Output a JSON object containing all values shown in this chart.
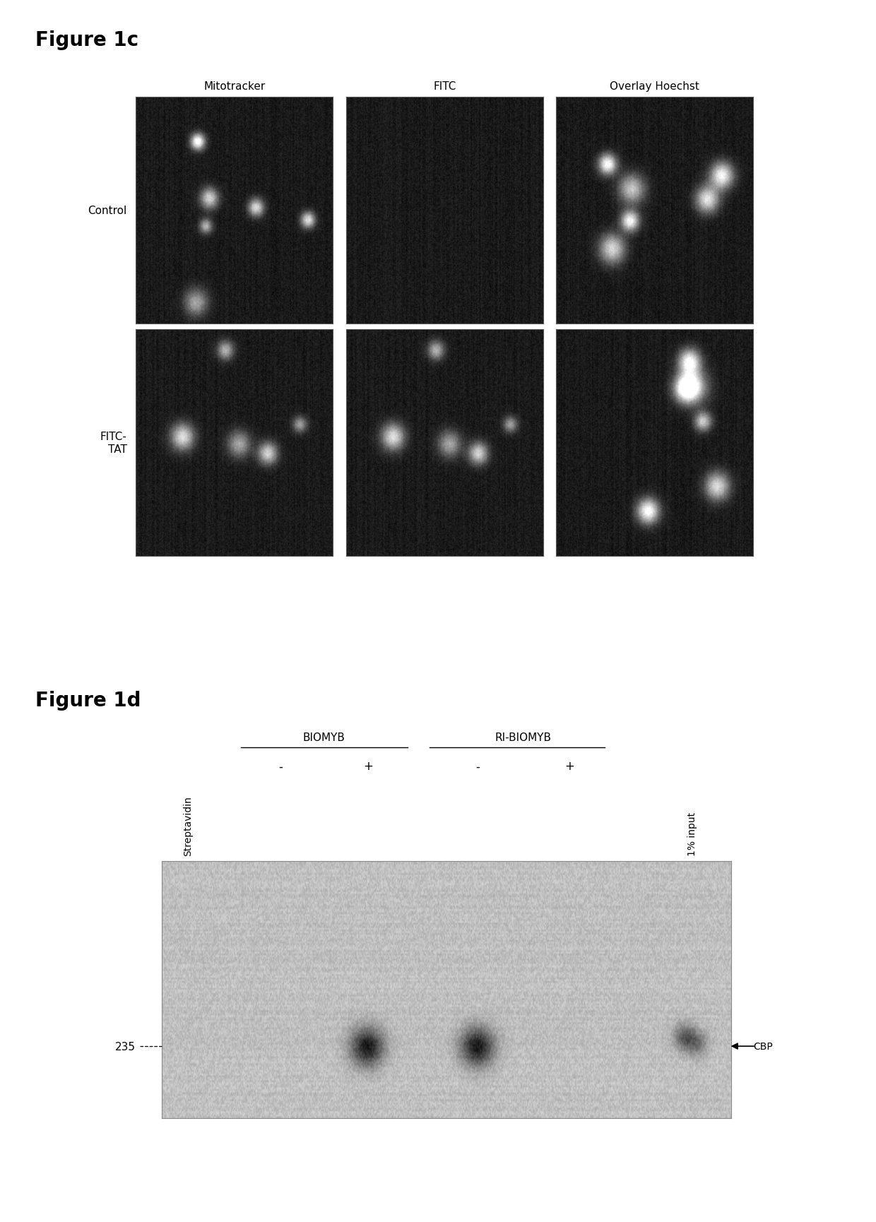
{
  "fig1c_title": "Figure 1c",
  "fig1d_title": "Figure 1d",
  "col_headers": [
    "Mitotracker",
    "FITC",
    "Overlay Hoechst"
  ],
  "row_header_control": "Control",
  "row_header_fitc": "FITC-\nTAT",
  "biomyb_label": "BIOMYB",
  "ri_biomyb_label": "RI-BIOMYB",
  "streptavidin_label": "Streptavidin",
  "input_label": "1% input",
  "cbp_label": "CBP",
  "mw_label": "235",
  "plus_minus_row": [
    "-",
    "+",
    "-",
    "+"
  ],
  "bg_color": "#ffffff"
}
